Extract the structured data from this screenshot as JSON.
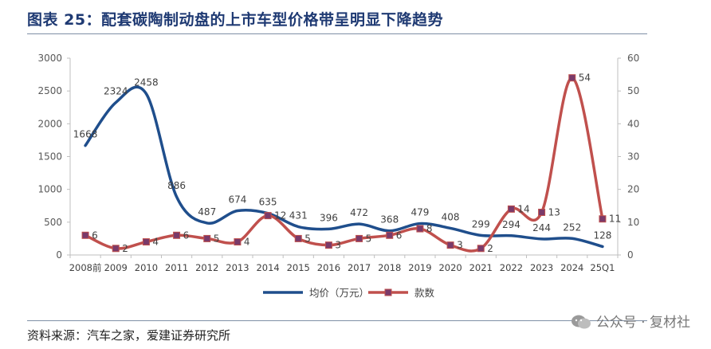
{
  "header": {
    "title": "图表  25：配套碳陶制动盘的上市车型价格带呈明显下降趋势"
  },
  "footer": {
    "source": "资料来源：汽车之家，爱建证券研究所"
  },
  "watermark": {
    "text": "公众号 · 复材社",
    "icon": "wechat-icon"
  },
  "colors": {
    "price_line": "#1f4e8c",
    "count_line": "#c0504d",
    "count_marker": "#7a3a6a",
    "axis": "#bfbfbf",
    "text": "#595959"
  },
  "chart_data": {
    "type": "line",
    "categories": [
      "2008前",
      "2009",
      "2010",
      "2011",
      "2012",
      "2013",
      "2014",
      "2015",
      "2016",
      "2017",
      "2018",
      "2019",
      "2020",
      "2021",
      "2022",
      "2023",
      "2024",
      "25Q1"
    ],
    "left_axis": {
      "ylim": [
        0,
        3000
      ],
      "ticks": [
        "0",
        "500",
        "1000",
        "1500",
        "2000",
        "2500",
        "3000"
      ]
    },
    "right_axis": {
      "ylim": [
        0,
        60
      ],
      "ticks": [
        "0",
        "10",
        "20",
        "30",
        "40",
        "50",
        "60"
      ]
    },
    "series": [
      {
        "name": "均价（万元）",
        "axis": "left",
        "values": [
          1668,
          2324,
          2458,
          886,
          487,
          674,
          635,
          431,
          396,
          472,
          368,
          479,
          408,
          299,
          294,
          244,
          252,
          128
        ],
        "labels": [
          "1668",
          "2324",
          "2458",
          "886",
          "487",
          "674",
          "635",
          "431",
          "396",
          "472",
          "368",
          "479",
          "408",
          "299",
          "294",
          "244",
          "252",
          "128"
        ]
      },
      {
        "name": "款数",
        "axis": "right",
        "values": [
          6,
          2,
          4,
          6,
          5,
          4,
          12,
          5,
          3,
          5,
          6,
          8,
          3,
          2,
          14,
          13,
          54,
          11
        ],
        "labels": [
          "6",
          "2",
          "4",
          "6",
          "5",
          "4",
          "12",
          "5",
          "3",
          "5",
          "6",
          "8",
          "3",
          "2",
          "14",
          "13",
          "54",
          "11"
        ]
      }
    ],
    "legend": [
      "均价（万元）",
      "款数"
    ],
    "legend_position": "bottom"
  }
}
